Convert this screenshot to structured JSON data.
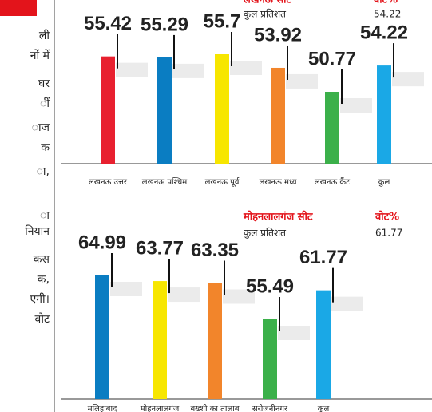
{
  "side_text": [
    "ली",
    "नों में",
    "घर",
    "ीं",
    "ाज",
    "क",
    "ा,",
    "ा",
    "नियान",
    "कस",
    "क,",
    "एगी।",
    "वोट"
  ],
  "chart_data": [
    {
      "type": "bar",
      "title": "लखनऊ सीट",
      "value_header": "वोट%",
      "subtitle": "कुल प्रतिशत",
      "total": 54.22,
      "categories": [
        "लखनऊ उत्तर",
        "लखनऊ पश्चिम",
        "लखनऊ पूर्व",
        "लखनऊ मध्य",
        "लखनऊ कैंट",
        "कुल"
      ],
      "values": [
        55.42,
        55.29,
        55.7,
        53.92,
        50.77,
        54.22
      ],
      "colors": [
        "#e8202f",
        "#0a7dc2",
        "#f7e600",
        "#f2852b",
        "#3bb04a",
        "#1aa8e6"
      ]
    },
    {
      "type": "bar",
      "title": "मोहनलालगंज सीट",
      "value_header": "वोट%",
      "subtitle": "कुल प्रतिशत",
      "total": 61.77,
      "categories": [
        "मलिहाबाद",
        "मोहनलालगंज",
        "बख्शी का तालाब",
        "सरोजनीनगर",
        "कुल"
      ],
      "values": [
        64.99,
        63.77,
        63.35,
        55.49,
        61.77
      ],
      "colors": [
        "#0a7dc2",
        "#f7e600",
        "#f2852b",
        "#3bb04a",
        "#1aa8e6"
      ]
    }
  ]
}
